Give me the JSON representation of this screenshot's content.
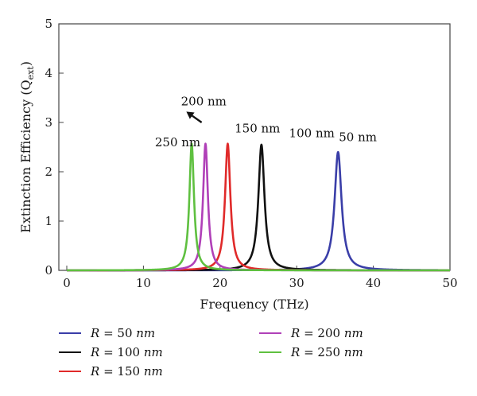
{
  "chart_data": {
    "type": "line",
    "xlabel": "Frequency (THz)",
    "ylabel": "Extinction Efficiency (Q",
    "ylabel_sub": "ext",
    "ylabel_close": ")",
    "xlim": [
      0,
      50
    ],
    "ylim": [
      0,
      5
    ],
    "xticks": [
      "0",
      "10",
      "20",
      "30",
      "40",
      "50"
    ],
    "yticks": [
      "0",
      "1",
      "2",
      "3",
      "4",
      "5"
    ],
    "grid": false,
    "legend_position": "bottom",
    "series": [
      {
        "name": "R = 50 nm",
        "legend_var": "R",
        "legend_eq": " = 50 ",
        "legend_unit": "nm",
        "color": "#3a3ea8",
        "peak_x": 35.4,
        "peak_y": 2.4,
        "width": 0.55
      },
      {
        "name": "R = 100 nm",
        "legend_var": "R",
        "legend_eq": " = 100 ",
        "legend_unit": "nm",
        "color": "#111111",
        "peak_x": 25.4,
        "peak_y": 2.55,
        "width": 0.48
      },
      {
        "name": "R = 150 nm",
        "legend_var": "R",
        "legend_eq": " = 150 ",
        "legend_unit": "nm",
        "color": "#e02a2a",
        "peak_x": 21.0,
        "peak_y": 2.57,
        "width": 0.42
      },
      {
        "name": "R = 200 nm",
        "legend_var": "R",
        "legend_eq": " = 200 ",
        "legend_unit": "nm",
        "color": "#b040b8",
        "peak_x": 18.1,
        "peak_y": 2.57,
        "width": 0.38
      },
      {
        "name": "R = 250 nm",
        "legend_var": "R",
        "legend_eq": " = 250 ",
        "legend_unit": "nm",
        "color": "#5fc040",
        "peak_x": 16.3,
        "peak_y": 2.57,
        "width": 0.36
      }
    ],
    "annotations": [
      {
        "text": "250 nm",
        "x": 11.5,
        "y": 2.52
      },
      {
        "text": "200 nm",
        "x": 14.9,
        "y": 3.35
      },
      {
        "text": "150 nm",
        "x": 21.9,
        "y": 2.8
      },
      {
        "text": "100 nm",
        "x": 29.0,
        "y": 2.7
      },
      {
        "text": "50 nm",
        "x": 35.5,
        "y": 2.62
      }
    ],
    "arrow": {
      "from_x": 17.6,
      "from_y": 3.0,
      "to_x": 15.6,
      "to_y": 3.22
    }
  }
}
